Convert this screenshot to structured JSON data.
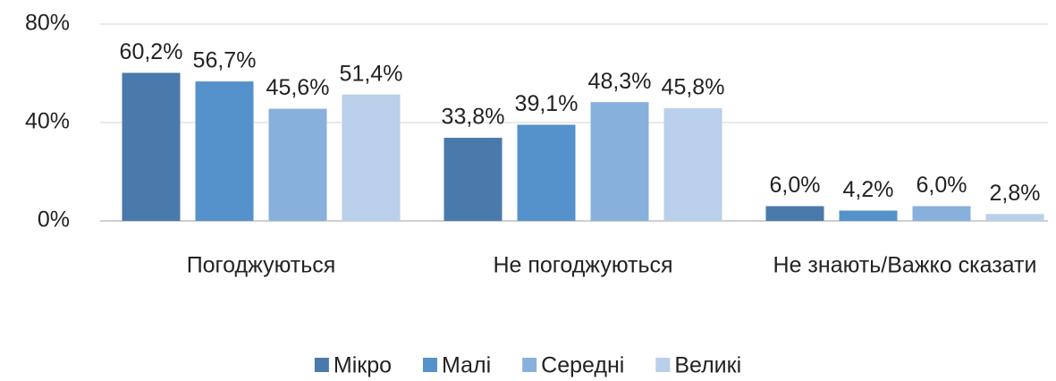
{
  "chart_data": {
    "type": "bar",
    "categories": [
      "Погоджуються",
      "Не погоджуються",
      "Не знають/Важко сказати"
    ],
    "series": [
      {
        "name": "Мікро",
        "color": "#4a7aab",
        "values": [
          60.2,
          33.8,
          6.0
        ],
        "value_labels": [
          "60,2%",
          "33,8%",
          "6,0%"
        ]
      },
      {
        "name": "Малі",
        "color": "#5592cb",
        "values": [
          56.7,
          39.1,
          4.2
        ],
        "value_labels": [
          "56,7%",
          "39,1%",
          "4,2%"
        ]
      },
      {
        "name": "Середні",
        "color": "#88b0dd",
        "values": [
          45.6,
          48.3,
          6.0
        ],
        "value_labels": [
          "45,6%",
          "48,3%",
          "6,0%"
        ]
      },
      {
        "name": "Великі",
        "color": "#b9cfea",
        "values": [
          51.4,
          45.8,
          2.8
        ],
        "value_labels": [
          "51,4%",
          "45,8%",
          "2,8%"
        ]
      }
    ],
    "ylim": [
      0,
      80
    ],
    "yticks": [
      {
        "value": 0,
        "label": "0%"
      },
      {
        "value": 40,
        "label": "40%"
      },
      {
        "value": 80,
        "label": "80%"
      }
    ],
    "grid": true,
    "legend": "bottom"
  }
}
